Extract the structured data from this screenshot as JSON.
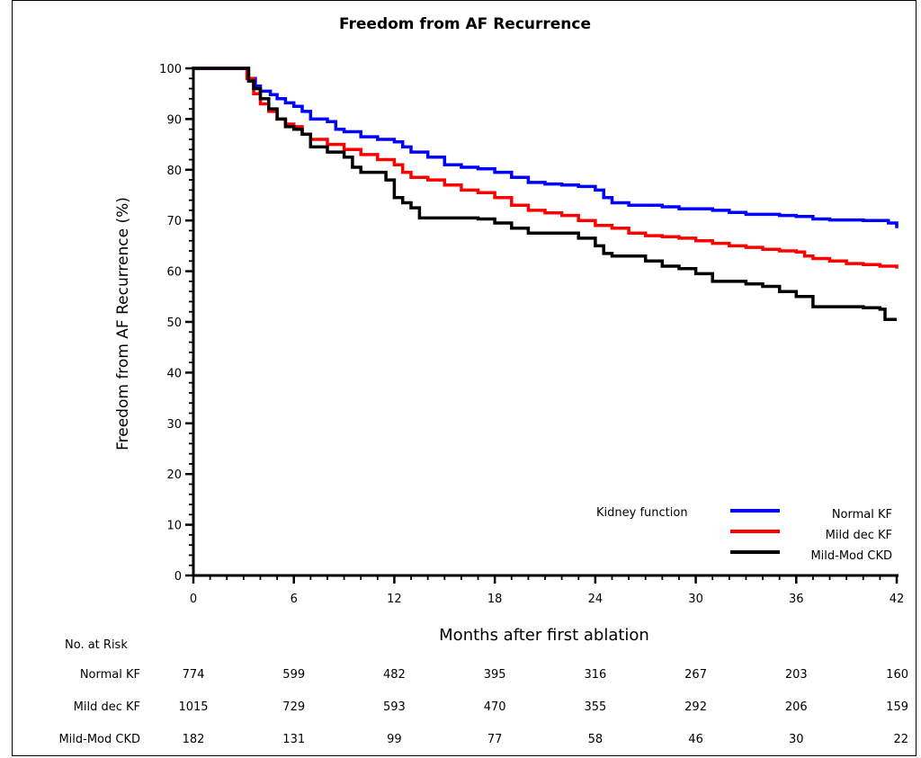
{
  "chart_data": {
    "type": "line",
    "title": "Freedom from AF Recurrence",
    "xlabel": "Months after first ablation",
    "ylabel": "Freedom from AF Recurrence (%)",
    "xlim": [
      0,
      42
    ],
    "ylim": [
      0,
      100
    ],
    "x_ticks": [
      0,
      6,
      12,
      18,
      24,
      30,
      36,
      42
    ],
    "y_ticks": [
      0,
      10,
      20,
      30,
      40,
      50,
      60,
      70,
      80,
      90,
      100
    ],
    "grid": false,
    "legend": {
      "title": "Kidney function",
      "position": "bottom-right"
    },
    "series": [
      {
        "name": "Normal KF",
        "color": "#0000ff",
        "points": [
          [
            0,
            100
          ],
          [
            3,
            100
          ],
          [
            3.3,
            98
          ],
          [
            3.7,
            96.5
          ],
          [
            4,
            95.5
          ],
          [
            4.6,
            94.8
          ],
          [
            5,
            94
          ],
          [
            5.5,
            93.2
          ],
          [
            6,
            92.5
          ],
          [
            6.5,
            91.5
          ],
          [
            7,
            90
          ],
          [
            8,
            89.5
          ],
          [
            8.5,
            88
          ],
          [
            9,
            87.5
          ],
          [
            10,
            86.5
          ],
          [
            11,
            86
          ],
          [
            12,
            85.5
          ],
          [
            12.5,
            84.5
          ],
          [
            13,
            83.5
          ],
          [
            14,
            82.5
          ],
          [
            15,
            81
          ],
          [
            16,
            80.5
          ],
          [
            17,
            80.2
          ],
          [
            18,
            79.5
          ],
          [
            19,
            78.5
          ],
          [
            20,
            77.5
          ],
          [
            21,
            77.2
          ],
          [
            22,
            77
          ],
          [
            23,
            76.7
          ],
          [
            24,
            76
          ],
          [
            24.5,
            74.5
          ],
          [
            25,
            73.5
          ],
          [
            26,
            73
          ],
          [
            28,
            72.7
          ],
          [
            29,
            72.3
          ],
          [
            31,
            72
          ],
          [
            32,
            71.6
          ],
          [
            33,
            71.2
          ],
          [
            35,
            71
          ],
          [
            36,
            70.8
          ],
          [
            37,
            70.3
          ],
          [
            38,
            70.1
          ],
          [
            40,
            70
          ],
          [
            41,
            70
          ],
          [
            41.5,
            69.5
          ],
          [
            42,
            68.5
          ]
        ]
      },
      {
        "name": "Mild dec KF",
        "color": "#ff0000",
        "points": [
          [
            0,
            100
          ],
          [
            3,
            100
          ],
          [
            3.2,
            98
          ],
          [
            3.6,
            95
          ],
          [
            4,
            93
          ],
          [
            4.5,
            91.5
          ],
          [
            5,
            90
          ],
          [
            5.5,
            89
          ],
          [
            6,
            88.5
          ],
          [
            6.5,
            87
          ],
          [
            7,
            86
          ],
          [
            8,
            85
          ],
          [
            9,
            84
          ],
          [
            10,
            83
          ],
          [
            11,
            82
          ],
          [
            12,
            81
          ],
          [
            12.5,
            79.5
          ],
          [
            13,
            78.5
          ],
          [
            14,
            78
          ],
          [
            15,
            77
          ],
          [
            16,
            76
          ],
          [
            17,
            75.5
          ],
          [
            18,
            74.5
          ],
          [
            19,
            73
          ],
          [
            20,
            72
          ],
          [
            21,
            71.5
          ],
          [
            22,
            71
          ],
          [
            23,
            70
          ],
          [
            24,
            69
          ],
          [
            25,
            68.5
          ],
          [
            26,
            67.5
          ],
          [
            27,
            67
          ],
          [
            28,
            66.8
          ],
          [
            29,
            66.5
          ],
          [
            30,
            66
          ],
          [
            31,
            65.5
          ],
          [
            32,
            65
          ],
          [
            33,
            64.7
          ],
          [
            34,
            64.3
          ],
          [
            35,
            64
          ],
          [
            36,
            63.8
          ],
          [
            36.5,
            63
          ],
          [
            37,
            62.5
          ],
          [
            38,
            62
          ],
          [
            39,
            61.5
          ],
          [
            40,
            61.3
          ],
          [
            41,
            61
          ],
          [
            42,
            60.5
          ]
        ]
      },
      {
        "name": "Mild-Mod CKD",
        "color": "#000000",
        "points": [
          [
            0,
            100
          ],
          [
            3,
            100
          ],
          [
            3.3,
            97.5
          ],
          [
            3.6,
            96
          ],
          [
            4,
            94
          ],
          [
            4.5,
            92
          ],
          [
            5,
            90
          ],
          [
            5.5,
            88.5
          ],
          [
            6,
            88
          ],
          [
            6.5,
            87
          ],
          [
            7,
            84.5
          ],
          [
            8,
            83.5
          ],
          [
            9,
            82.5
          ],
          [
            9.5,
            80.5
          ],
          [
            10,
            79.5
          ],
          [
            11,
            79.5
          ],
          [
            11.5,
            78
          ],
          [
            12,
            74.5
          ],
          [
            12.5,
            73.5
          ],
          [
            13,
            72.5
          ],
          [
            13.5,
            70.5
          ],
          [
            16,
            70.5
          ],
          [
            17,
            70.3
          ],
          [
            18,
            69.5
          ],
          [
            19,
            68.5
          ],
          [
            20,
            67.5
          ],
          [
            21,
            67.5
          ],
          [
            22,
            67.5
          ],
          [
            23,
            66.5
          ],
          [
            24,
            65
          ],
          [
            24.5,
            63.5
          ],
          [
            25,
            63
          ],
          [
            26,
            63
          ],
          [
            27,
            62
          ],
          [
            28,
            61
          ],
          [
            29,
            60.5
          ],
          [
            30,
            59.5
          ],
          [
            31,
            58
          ],
          [
            33,
            57.5
          ],
          [
            34,
            57
          ],
          [
            35,
            56
          ],
          [
            36,
            55
          ],
          [
            37,
            53
          ],
          [
            40,
            52.8
          ],
          [
            41,
            52.5
          ],
          [
            41.3,
            50.5
          ],
          [
            42,
            50.5
          ]
        ]
      }
    ],
    "risk_table": {
      "heading": "No. at Risk",
      "months": [
        0,
        6,
        12,
        18,
        24,
        30,
        36,
        42
      ],
      "rows": [
        {
          "label": "Normal KF",
          "values": [
            "774",
            "599",
            "482",
            "395",
            "316",
            "267",
            "203",
            "160"
          ]
        },
        {
          "label": "Mild dec KF",
          "values": [
            "1015",
            "729",
            "593",
            "470",
            "355",
            "292",
            "206",
            "159"
          ]
        },
        {
          "label": "Mild-Mod CKD",
          "values": [
            "182",
            "131",
            "99",
            "77",
            "58",
            "46",
            "30",
            "22"
          ]
        }
      ]
    }
  }
}
